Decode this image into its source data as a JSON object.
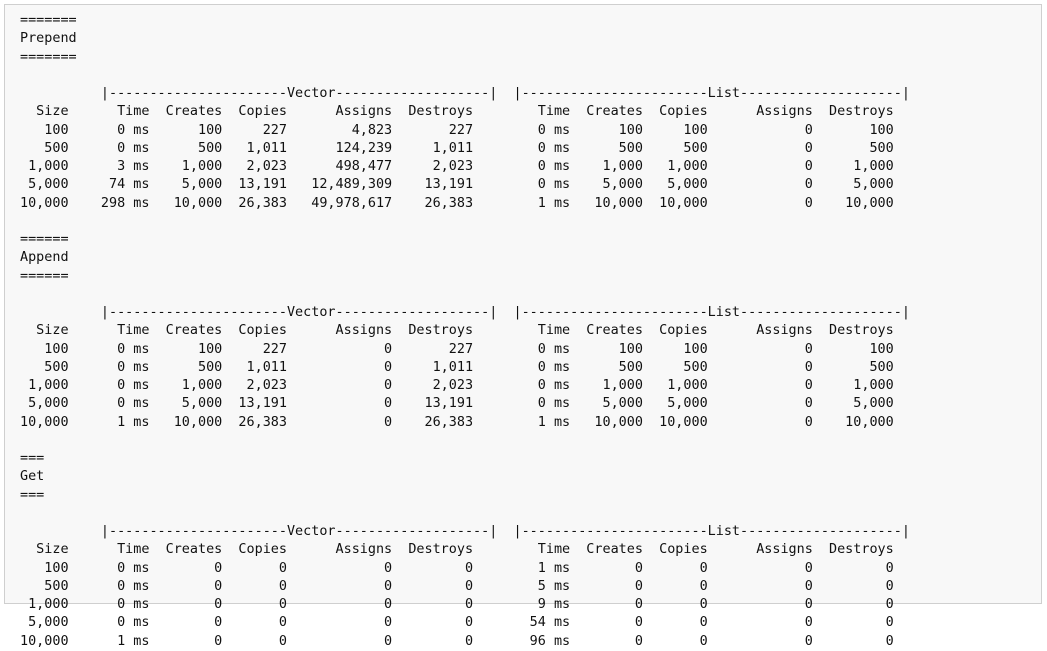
{
  "sections": [
    {
      "title": "Prepend",
      "underline": "=======",
      "groups": [
        "Vector",
        "List"
      ],
      "columns": [
        "Size",
        "Time",
        "Creates",
        "Copies",
        "Assigns",
        "Destroys"
      ],
      "rows": [
        {
          "size": "100",
          "vector": {
            "time": "0 ms",
            "creates": "100",
            "copies": "227",
            "assigns": "4,823",
            "destroys": "227"
          },
          "list": {
            "time": "0 ms",
            "creates": "100",
            "copies": "100",
            "assigns": "0",
            "destroys": "100"
          }
        },
        {
          "size": "500",
          "vector": {
            "time": "0 ms",
            "creates": "500",
            "copies": "1,011",
            "assigns": "124,239",
            "destroys": "1,011"
          },
          "list": {
            "time": "0 ms",
            "creates": "500",
            "copies": "500",
            "assigns": "0",
            "destroys": "500"
          }
        },
        {
          "size": "1,000",
          "vector": {
            "time": "3 ms",
            "creates": "1,000",
            "copies": "2,023",
            "assigns": "498,477",
            "destroys": "2,023"
          },
          "list": {
            "time": "0 ms",
            "creates": "1,000",
            "copies": "1,000",
            "assigns": "0",
            "destroys": "1,000"
          }
        },
        {
          "size": "5,000",
          "vector": {
            "time": "74 ms",
            "creates": "5,000",
            "copies": "13,191",
            "assigns": "12,489,309",
            "destroys": "13,191"
          },
          "list": {
            "time": "0 ms",
            "creates": "5,000",
            "copies": "5,000",
            "assigns": "0",
            "destroys": "5,000"
          }
        },
        {
          "size": "10,000",
          "vector": {
            "time": "298 ms",
            "creates": "10,000",
            "copies": "26,383",
            "assigns": "49,978,617",
            "destroys": "26,383"
          },
          "list": {
            "time": "1 ms",
            "creates": "10,000",
            "copies": "10,000",
            "assigns": "0",
            "destroys": "10,000"
          }
        }
      ]
    },
    {
      "title": "Append",
      "underline": "======",
      "groups": [
        "Vector",
        "List"
      ],
      "columns": [
        "Size",
        "Time",
        "Creates",
        "Copies",
        "Assigns",
        "Destroys"
      ],
      "rows": [
        {
          "size": "100",
          "vector": {
            "time": "0 ms",
            "creates": "100",
            "copies": "227",
            "assigns": "0",
            "destroys": "227"
          },
          "list": {
            "time": "0 ms",
            "creates": "100",
            "copies": "100",
            "assigns": "0",
            "destroys": "100"
          }
        },
        {
          "size": "500",
          "vector": {
            "time": "0 ms",
            "creates": "500",
            "copies": "1,011",
            "assigns": "0",
            "destroys": "1,011"
          },
          "list": {
            "time": "0 ms",
            "creates": "500",
            "copies": "500",
            "assigns": "0",
            "destroys": "500"
          }
        },
        {
          "size": "1,000",
          "vector": {
            "time": "0 ms",
            "creates": "1,000",
            "copies": "2,023",
            "assigns": "0",
            "destroys": "2,023"
          },
          "list": {
            "time": "0 ms",
            "creates": "1,000",
            "copies": "1,000",
            "assigns": "0",
            "destroys": "1,000"
          }
        },
        {
          "size": "5,000",
          "vector": {
            "time": "0 ms",
            "creates": "5,000",
            "copies": "13,191",
            "assigns": "0",
            "destroys": "13,191"
          },
          "list": {
            "time": "0 ms",
            "creates": "5,000",
            "copies": "5,000",
            "assigns": "0",
            "destroys": "5,000"
          }
        },
        {
          "size": "10,000",
          "vector": {
            "time": "1 ms",
            "creates": "10,000",
            "copies": "26,383",
            "assigns": "0",
            "destroys": "26,383"
          },
          "list": {
            "time": "1 ms",
            "creates": "10,000",
            "copies": "10,000",
            "assigns": "0",
            "destroys": "10,000"
          }
        }
      ]
    },
    {
      "title": "Get",
      "underline": "===",
      "groups": [
        "Vector",
        "List"
      ],
      "columns": [
        "Size",
        "Time",
        "Creates",
        "Copies",
        "Assigns",
        "Destroys"
      ],
      "rows": [
        {
          "size": "100",
          "vector": {
            "time": "0 ms",
            "creates": "0",
            "copies": "0",
            "assigns": "0",
            "destroys": "0"
          },
          "list": {
            "time": "1 ms",
            "creates": "0",
            "copies": "0",
            "assigns": "0",
            "destroys": "0"
          }
        },
        {
          "size": "500",
          "vector": {
            "time": "0 ms",
            "creates": "0",
            "copies": "0",
            "assigns": "0",
            "destroys": "0"
          },
          "list": {
            "time": "5 ms",
            "creates": "0",
            "copies": "0",
            "assigns": "0",
            "destroys": "0"
          }
        },
        {
          "size": "1,000",
          "vector": {
            "time": "0 ms",
            "creates": "0",
            "copies": "0",
            "assigns": "0",
            "destroys": "0"
          },
          "list": {
            "time": "9 ms",
            "creates": "0",
            "copies": "0",
            "assigns": "0",
            "destroys": "0"
          }
        },
        {
          "size": "5,000",
          "vector": {
            "time": "0 ms",
            "creates": "0",
            "copies": "0",
            "assigns": "0",
            "destroys": "0"
          },
          "list": {
            "time": "54 ms",
            "creates": "0",
            "copies": "0",
            "assigns": "0",
            "destroys": "0"
          }
        },
        {
          "size": "10,000",
          "vector": {
            "time": "1 ms",
            "creates": "0",
            "copies": "0",
            "assigns": "0",
            "destroys": "0"
          },
          "list": {
            "time": "96 ms",
            "creates": "0",
            "copies": "0",
            "assigns": "0",
            "destroys": "0"
          }
        }
      ]
    }
  ]
}
